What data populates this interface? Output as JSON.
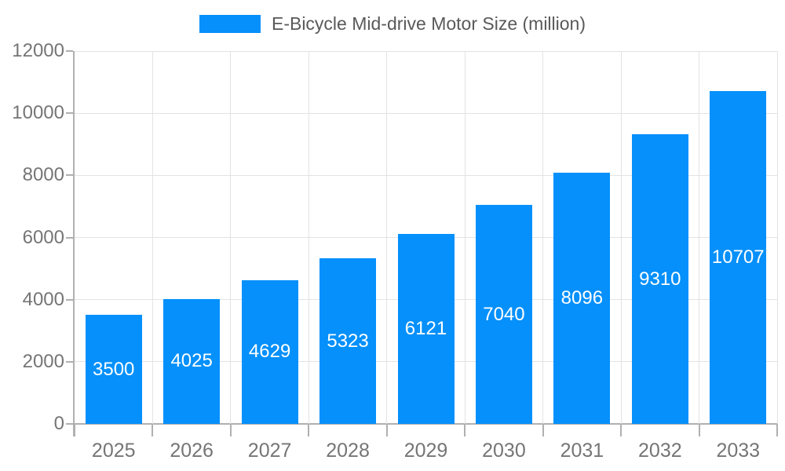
{
  "legend": {
    "label": "E-Bicycle Mid-drive Motor Size (million)"
  },
  "chart_data": {
    "type": "bar",
    "title": "E-Bicycle Mid-drive Motor Size (million)",
    "categories": [
      "2025",
      "2026",
      "2027",
      "2028",
      "2029",
      "2030",
      "2031",
      "2032",
      "2033"
    ],
    "values": [
      3500,
      4025,
      4629,
      5323,
      6121,
      7040,
      8096,
      9310,
      10707
    ],
    "value_labels": [
      "3500",
      "4025",
      "4629",
      "5323",
      "6121",
      "7040",
      "8096",
      "9310",
      "10707"
    ],
    "xlabel": "",
    "ylabel": "",
    "ylim": [
      0,
      12000
    ],
    "yticks": [
      0,
      2000,
      4000,
      6000,
      8000,
      10000,
      12000
    ],
    "grid": "both",
    "legend_position": "top",
    "colors": {
      "bar": "#0590fb",
      "grid_line": "#e3e3e3",
      "axis_line": "#b0b0b0",
      "tick_label": "#757575",
      "legend_text": "#595959",
      "value_label": "#ffffff",
      "background": "#ffffff"
    }
  }
}
